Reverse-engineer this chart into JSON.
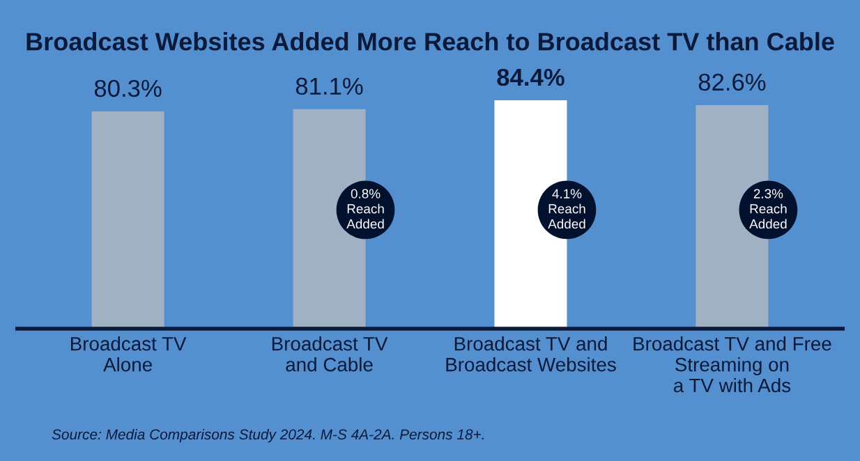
{
  "chart_data": {
    "type": "bar",
    "title": "Broadcast Websites Added More Reach to Broadcast TV than Cable",
    "categories": [
      "Broadcast TV\nAlone",
      "Broadcast TV\nand Cable",
      "Broadcast TV and\nBroadcast Websites",
      "Broadcast TV and Free\nStreaming on\na TV with Ads"
    ],
    "values": [
      80.3,
      81.1,
      84.4,
      82.6
    ],
    "colors": [
      "#9fb1c3",
      "#9fb1c3",
      "#ffffff",
      "#9fb1c3"
    ],
    "value_labels": [
      "80.3%",
      "81.1%",
      "84.4%",
      "82.6%"
    ],
    "tick_labels": "x",
    "grid": false,
    "annotations": [
      "0.8%\nReach\nAdded",
      "4.1%\nReach\nAdded",
      "2.3%\nReach\nAdded",
      "Source: Media Comparisons Study 2024. M-S 4A-2A. Persons 18+."
    ]
  }
}
